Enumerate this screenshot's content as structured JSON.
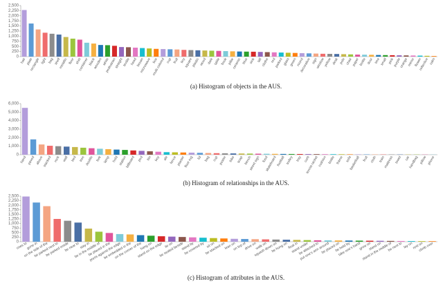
{
  "chart_data": [
    {
      "type": "bar",
      "title": "(a) Histogram of objects in the AUS.",
      "colors": [
        "#b39ddb",
        "#5c9bd5",
        "#f4a582",
        "#ef6c6c",
        "#8c8c8c",
        "#4a6fa5",
        "#c6b84a",
        "#9bc53d",
        "#e0559b",
        "#7ecbd9",
        "#f5b041",
        "#1f77b4",
        "#2ca02c",
        "#d62728",
        "#9467bd",
        "#8c564b",
        "#e377c2",
        "#17becf",
        "#bcbd22",
        "#ff7f0e"
      ],
      "categories": [
        "hair",
        "plate",
        "rectangle",
        "light",
        "bag",
        "shelf",
        "metallic",
        "floor",
        "shirt",
        "container",
        "black",
        "wooden",
        "white",
        "pedestrian",
        "straight",
        "textile",
        "head",
        "brown",
        "microwave",
        "box",
        "multi colored",
        "cup",
        "fruit",
        "tiny",
        "square",
        "plastic",
        "wood",
        "dark",
        "table",
        "book",
        "pillar",
        "ceramic",
        "blue",
        "sink",
        "tall",
        "clothe",
        "red",
        "parked",
        "glass",
        "green",
        "round",
        "decorative",
        "sign",
        "window",
        "yellow",
        "desk",
        "pole",
        "chair",
        "paper",
        "bottle",
        "door",
        "tree",
        "small",
        "pink",
        "purple",
        "orange",
        "mirror",
        "flower",
        "reflective",
        "calm"
      ],
      "values": [
        2280,
        1620,
        1330,
        1170,
        1120,
        1080,
        960,
        880,
        830,
        680,
        640,
        570,
        560,
        530,
        470,
        460,
        440,
        420,
        400,
        380,
        370,
        360,
        350,
        330,
        320,
        310,
        300,
        290,
        280,
        270,
        260,
        250,
        245,
        240,
        230,
        220,
        210,
        200,
        190,
        180,
        170,
        160,
        150,
        140,
        135,
        130,
        120,
        110,
        100,
        95,
        90,
        80,
        75,
        70,
        65,
        60,
        55,
        50,
        40,
        30
      ],
      "ylim": [
        0,
        2500
      ],
      "yticks": [
        0,
        250,
        500,
        750,
        {
          "value": 1000,
          "label": "1,000"
        },
        {
          "value": 1250,
          "label": "1,250"
        },
        {
          "value": 1500,
          "label": "1,500"
        },
        {
          "value": 1750,
          "label": "1,750"
        },
        {
          "value": 2000,
          "label": "2,000"
        },
        {
          "value": 2250,
          "label": "2,250"
        },
        {
          "value": 2500,
          "label": "2,500"
        }
      ]
    },
    {
      "type": "bar",
      "title": "(b) Histogram of relationships in the AUS.",
      "colors": [
        "#b39ddb",
        "#5c9bd5",
        "#f4a582",
        "#ef6c6c",
        "#8c8c8c",
        "#4a6fa5",
        "#c6b84a",
        "#9bc53d",
        "#e0559b",
        "#7ecbd9",
        "#f5b041",
        "#1f77b4",
        "#2ca02c",
        "#d62728",
        "#9467bd",
        "#8c564b",
        "#e377c2",
        "#17becf",
        "#bcbd22",
        "#ff7f0e"
      ],
      "categories": [
        "hand",
        "paved",
        "above",
        "stacked",
        "rock",
        "wall",
        "bed",
        "tree",
        "double",
        "fork",
        "lamp",
        "hold",
        "station",
        "billboard",
        "pod",
        "bin",
        "key",
        "ale",
        "fence",
        "planter",
        "floor rug",
        "lid",
        "bag",
        "cup",
        "poster",
        "bike",
        "soap",
        "bench",
        "street sign",
        "food",
        "skateboard",
        "football",
        "trolley",
        "tray",
        "curb",
        "tennis racket",
        "cushion",
        "bottle",
        "frame",
        "sofa",
        "basketball",
        "fruit",
        "cloth",
        "train",
        "mattress",
        "towel",
        "car",
        "handbag",
        "pillow",
        "phone"
      ],
      "values": [
        5500,
        1800,
        1200,
        1050,
        1000,
        950,
        900,
        820,
        760,
        700,
        650,
        600,
        560,
        500,
        450,
        400,
        350,
        300,
        280,
        260,
        240,
        220,
        200,
        180,
        160,
        150,
        140,
        130,
        120,
        110,
        100,
        90,
        85,
        80,
        75,
        70,
        65,
        60,
        55,
        50,
        45,
        40,
        38,
        35,
        32,
        30,
        28,
        25,
        22,
        20
      ],
      "ylim": [
        0,
        6000
      ],
      "yticks": [
        0,
        {
          "value": 1000,
          "label": "1,000"
        },
        {
          "value": 2000,
          "label": "2,000"
        },
        {
          "value": 3000,
          "label": "3,000"
        },
        {
          "value": 4000,
          "label": "4,000"
        },
        {
          "value": 5000,
          "label": "5,000"
        },
        {
          "value": 6000,
          "label": "6,000"
        }
      ]
    },
    {
      "type": "bar",
      "title": "(c) Histogram of attributes in the AUS.",
      "colors": [
        "#b39ddb",
        "#5c9bd5",
        "#f4a582",
        "#ef6c6c",
        "#8c8c8c",
        "#4a6fa5",
        "#c6b84a",
        "#9bc53d",
        "#e0559b",
        "#7ecbd9",
        "#f5b041",
        "#1f77b4",
        "#2ca02c",
        "#d62728",
        "#9467bd",
        "#8c564b",
        "#e377c2",
        "#17becf",
        "#bcbd22",
        "#ff7f0e"
      ],
      "categories": [
        "rises to",
        "gone in",
        "on the side of the",
        "be parked next to",
        "be parked inside",
        "be near to",
        "stay in",
        "be in the middle of",
        "be placed in the",
        "press against the edge",
        "be embedded in the",
        "on the corner of the",
        "hang on",
        "stand on the edge",
        "lie on",
        "be seated beside",
        "stand by",
        "be covered by",
        "sit on",
        "be stacked on",
        "lean on",
        "on top of",
        "drive on",
        "walk on",
        "squash down on",
        "be hung on",
        "float in",
        "stand under",
        "be attached to",
        "put one's arm around",
        "be placed on",
        "be held by",
        "take one's hand",
        "grow on",
        "stand on",
        "stand in the middle of",
        "be next to",
        "lay on",
        "rest on",
        "climb over"
      ],
      "values": [
        2480,
        2150,
        1950,
        1250,
        1150,
        1050,
        720,
        550,
        480,
        420,
        400,
        360,
        330,
        300,
        280,
        260,
        240,
        220,
        200,
        180,
        160,
        150,
        140,
        130,
        120,
        110,
        100,
        90,
        80,
        75,
        70,
        65,
        60,
        55,
        50,
        45,
        40,
        35,
        32,
        30
      ],
      "ylim": [
        0,
        2500
      ],
      "yticks": [
        0,
        250,
        500,
        750,
        {
          "value": 1000,
          "label": "1,000"
        },
        {
          "value": 1250,
          "label": "1,250"
        },
        {
          "value": 1500,
          "label": "1,500"
        },
        {
          "value": 1750,
          "label": "1,750"
        },
        {
          "value": 2000,
          "label": "2,000"
        },
        {
          "value": 2250,
          "label": "2,250"
        },
        {
          "value": 2500,
          "label": "2,500"
        }
      ]
    }
  ]
}
